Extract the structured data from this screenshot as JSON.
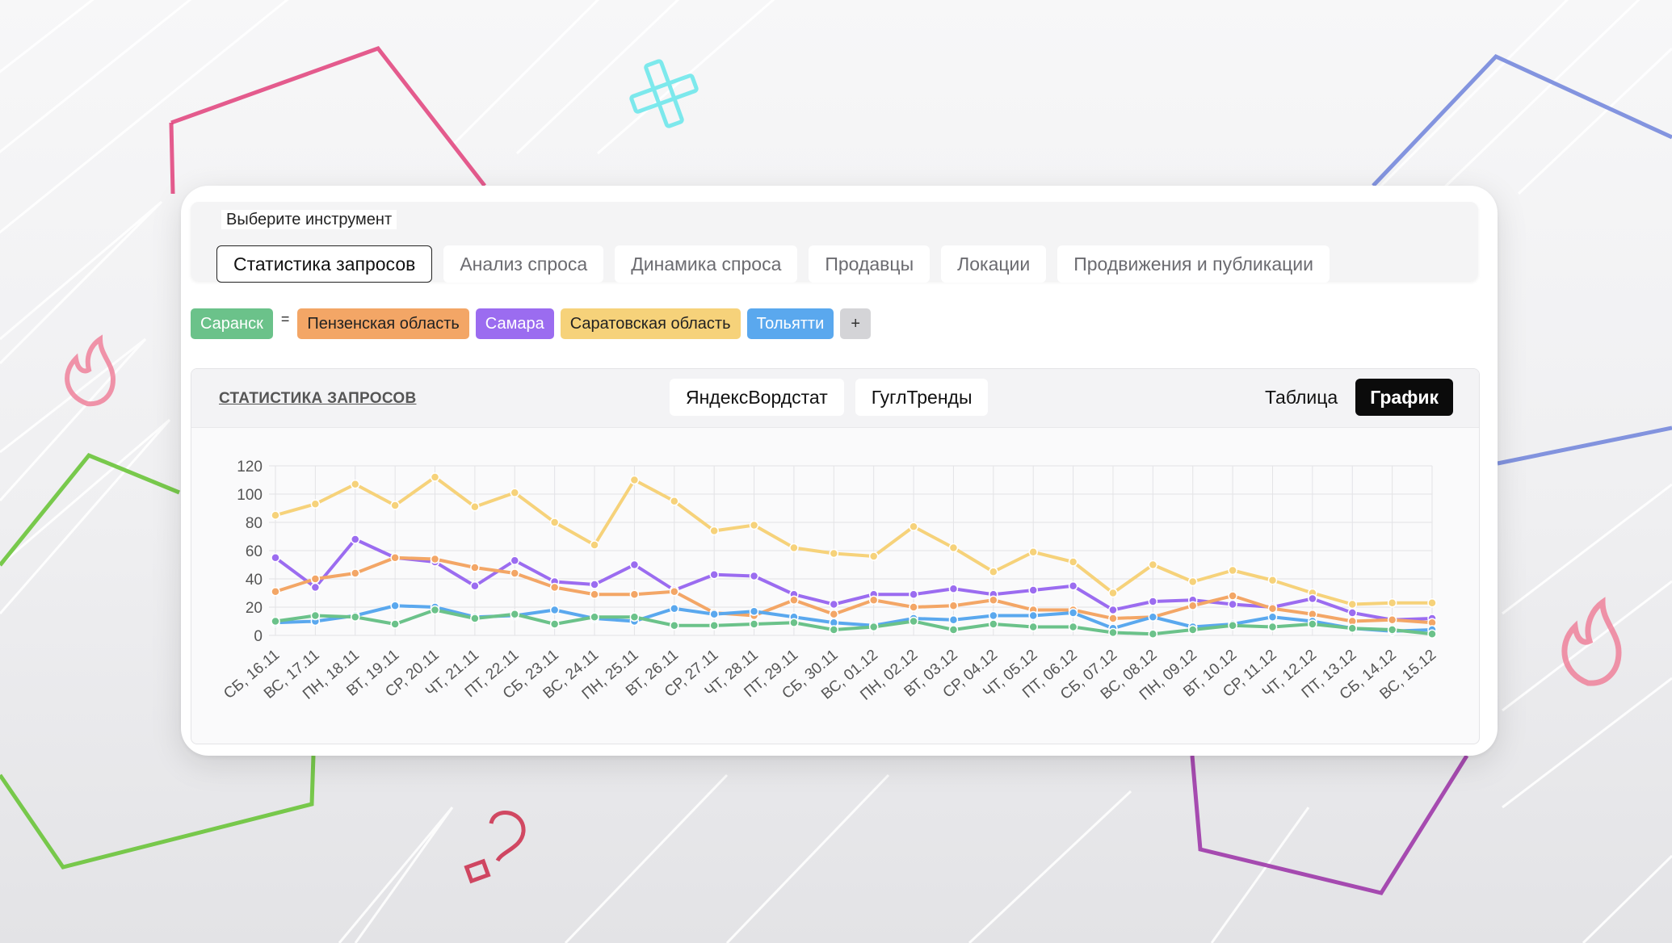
{
  "tool_panel": {
    "label": "Выберите инструмент",
    "tabs": [
      "Статистика запросов",
      "Анализ спроса",
      "Динамика спроса",
      "Продавцы",
      "Локации",
      "Продвижения и публикации"
    ],
    "active_tab": "Статистика запросов"
  },
  "regions": {
    "eq_sign": "=",
    "add_label": "+",
    "items": [
      {
        "label": "Саранск",
        "bg": "#6bc28a",
        "fg": "#ffffff"
      },
      {
        "label": "Пензенская область",
        "bg": "#f3a666",
        "fg": "#222222"
      },
      {
        "label": "Самара",
        "bg": "#9b6cf0",
        "fg": "#ffffff"
      },
      {
        "label": "Саратовская область",
        "bg": "#f6d27a",
        "fg": "#222222"
      },
      {
        "label": "Тольятти",
        "bg": "#5aa8ee",
        "fg": "#ffffff"
      }
    ]
  },
  "stats": {
    "title": "СТАТИСТИКА ЗАПРОСОВ",
    "source_tabs": [
      "ЯндексВордстат",
      "ГуглТренды"
    ],
    "view_tabs": [
      "Таблица",
      "График"
    ],
    "active_view": "График"
  },
  "chart_data": {
    "type": "line",
    "title": "",
    "xlabel": "",
    "ylabel": "",
    "ylim": [
      0,
      120
    ],
    "yticks": [
      0,
      20,
      40,
      60,
      80,
      100,
      120
    ],
    "grid": true,
    "categories": [
      "СБ, 16.11",
      "ВС, 17.11",
      "ПН, 18.11",
      "ВТ, 19.11",
      "СР, 20.11",
      "ЧТ, 21.11",
      "ПТ, 22.11",
      "СБ, 23.11",
      "ВС, 24.11",
      "ПН, 25.11",
      "ВТ, 26.11",
      "СР, 27.11",
      "ЧТ, 28.11",
      "ПТ, 29.11",
      "СБ, 30.11",
      "ВС, 01.12",
      "ПН, 02.12",
      "ВТ, 03.12",
      "СР, 04.12",
      "ЧТ, 05.12",
      "ПТ, 06.12",
      "СБ, 07.12",
      "ВС, 08.12",
      "ПН, 09.12",
      "ВТ, 10.12",
      "СР, 11.12",
      "ЧТ, 12.12",
      "ПТ, 13.12",
      "СБ, 14.12",
      "ВС, 15.12"
    ],
    "series": [
      {
        "color": "#f6d27a",
        "values": [
          85,
          93,
          107,
          92,
          112,
          91,
          101,
          80,
          64,
          110,
          95,
          74,
          78,
          62,
          58,
          56,
          77,
          62,
          45,
          59,
          52,
          30,
          50,
          38,
          46,
          39,
          30,
          22,
          23,
          23
        ]
      },
      {
        "color": "#9b6cf0",
        "values": [
          55,
          34,
          68,
          55,
          52,
          35,
          53,
          38,
          36,
          50,
          32,
          43,
          42,
          29,
          22,
          29,
          29,
          33,
          29,
          32,
          35,
          18,
          24,
          25,
          22,
          20,
          26,
          16,
          11,
          12
        ]
      },
      {
        "color": "#f3a666",
        "values": [
          31,
          40,
          44,
          55,
          54,
          48,
          44,
          34,
          29,
          29,
          31,
          16,
          14,
          25,
          15,
          25,
          20,
          21,
          25,
          18,
          18,
          12,
          13,
          21,
          28,
          19,
          15,
          10,
          11,
          9
        ]
      },
      {
        "color": "#5aa8ee",
        "values": [
          9,
          10,
          14,
          21,
          20,
          13,
          14,
          18,
          12,
          10,
          19,
          15,
          17,
          13,
          9,
          7,
          12,
          11,
          14,
          14,
          16,
          5,
          13,
          6,
          8,
          13,
          10,
          5,
          3,
          4
        ]
      },
      {
        "color": "#6bc28a",
        "values": [
          10,
          14,
          13,
          8,
          18,
          12,
          15,
          8,
          13,
          13,
          7,
          7,
          8,
          9,
          4,
          6,
          10,
          4,
          8,
          6,
          6,
          2,
          1,
          4,
          7,
          6,
          8,
          5,
          4,
          1
        ]
      }
    ]
  }
}
